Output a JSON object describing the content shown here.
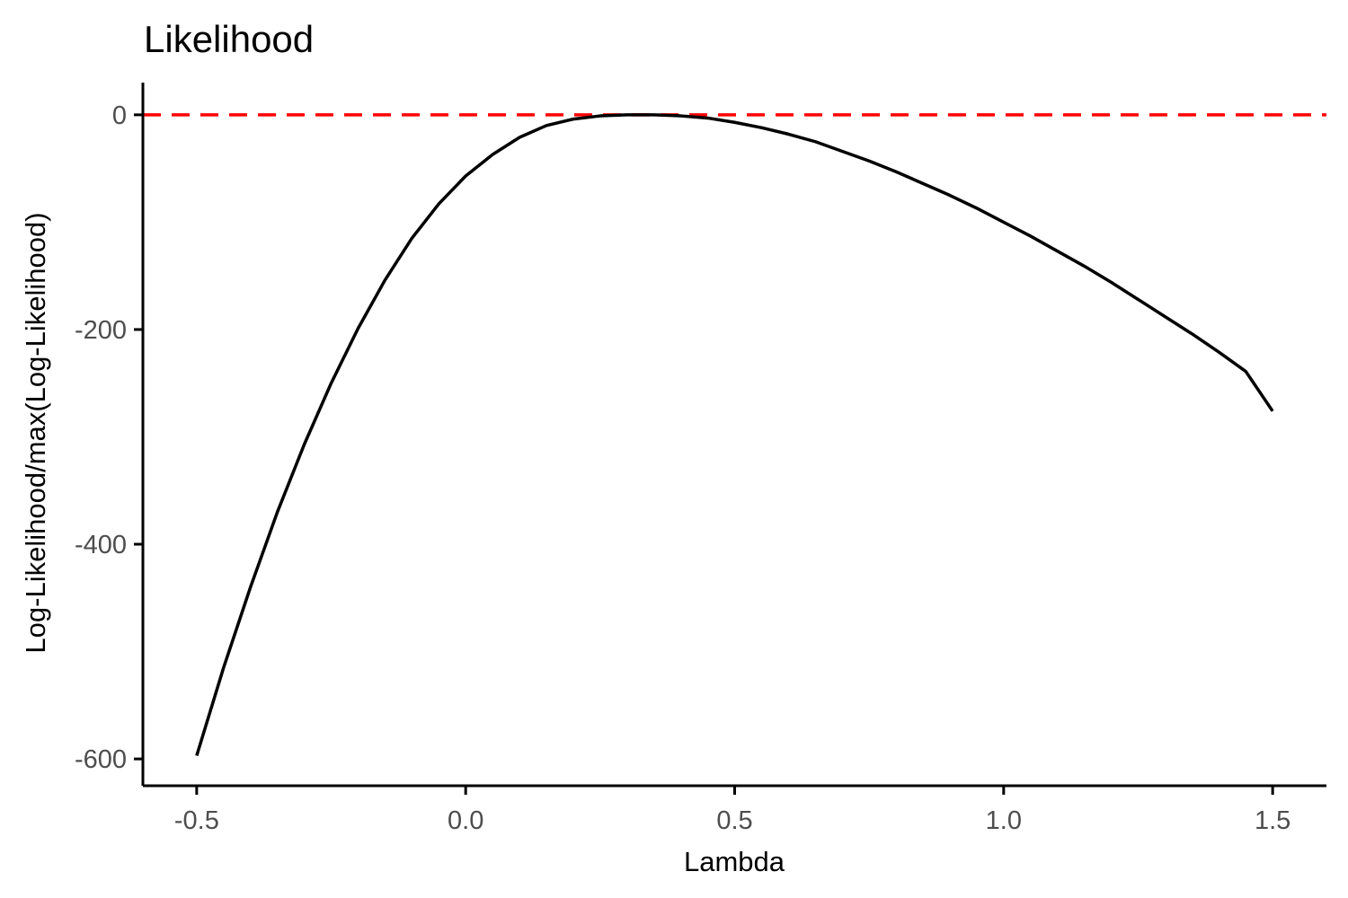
{
  "chart_data": {
    "type": "line",
    "title": "Likelihood",
    "xlabel": "Lambda",
    "ylabel": "Log-Likelihood/max(Log-Likelihood)",
    "xlim": [
      -0.6,
      1.6
    ],
    "ylim": [
      -625,
      30
    ],
    "x_ticks": [
      -0.5,
      0.0,
      0.5,
      1.0,
      1.5
    ],
    "x_tick_labels": [
      "-0.5",
      "0.0",
      "0.5",
      "1.0",
      "1.5"
    ],
    "y_ticks": [
      0,
      -200,
      -400,
      -600
    ],
    "y_tick_labels": [
      "0",
      "-200",
      "-400",
      "-600"
    ],
    "grid": false,
    "series": [
      {
        "x": [
          -0.5,
          -0.45,
          -0.4,
          -0.35,
          -0.3,
          -0.25,
          -0.2,
          -0.15,
          -0.1,
          -0.05,
          0.0,
          0.05,
          0.1,
          0.15,
          0.2,
          0.25,
          0.3,
          0.35,
          0.4,
          0.45,
          0.5,
          0.55,
          0.6,
          0.65,
          0.7,
          0.75,
          0.8,
          0.85,
          0.9,
          0.95,
          1.0,
          1.05,
          1.1,
          1.15,
          1.2,
          1.25,
          1.3,
          1.35,
          1.4,
          1.45,
          1.5
        ],
        "y": [
          -597,
          -515,
          -440,
          -370,
          -307,
          -250,
          -199,
          -154,
          -115,
          -83,
          -57,
          -37,
          -21,
          -10,
          -4,
          -1,
          0,
          0,
          -1,
          -3,
          -7,
          -12,
          -18,
          -25,
          -34,
          -43,
          -53,
          -64,
          -75,
          -87,
          -100,
          -113,
          -127,
          -141,
          -156,
          -172,
          -188,
          -204,
          -221,
          -239,
          -276
        ],
        "color": "#000000"
      }
    ],
    "reference_line": {
      "y": 0,
      "color": "#ff0000",
      "style": "dashed"
    }
  }
}
